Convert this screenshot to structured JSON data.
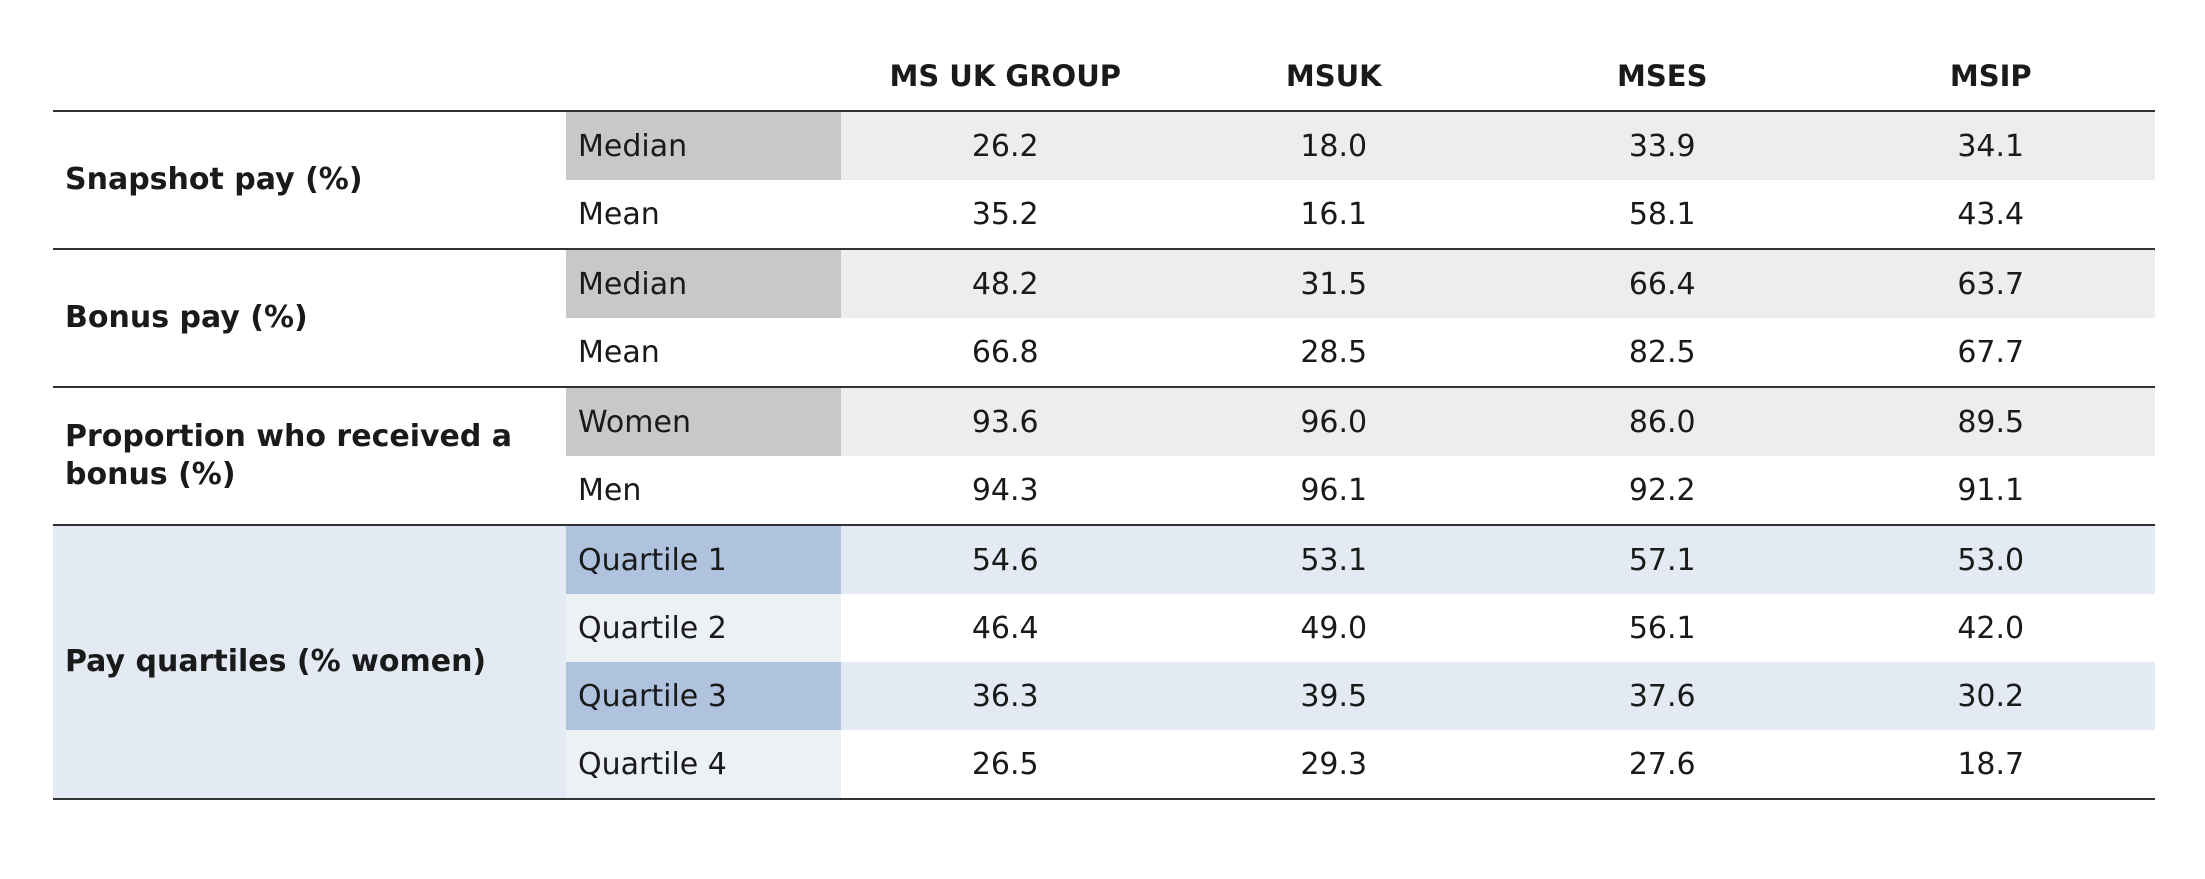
{
  "table": {
    "columns": [
      "MS UK GROUP",
      "MSUK",
      "MSES",
      "MSIP"
    ],
    "groups": [
      {
        "label": "Snapshot pay (%)",
        "rows": [
          {
            "label": "Median",
            "values": [
              "26.2",
              "18.0",
              "33.9",
              "34.1"
            ]
          },
          {
            "label": "Mean",
            "values": [
              "35.2",
              "16.1",
              "58.1",
              "43.4"
            ]
          }
        ]
      },
      {
        "label": "Bonus pay (%)",
        "rows": [
          {
            "label": "Median",
            "values": [
              "48.2",
              "31.5",
              "66.4",
              "63.7"
            ]
          },
          {
            "label": "Mean",
            "values": [
              "66.8",
              "28.5",
              "82.5",
              "67.7"
            ]
          }
        ]
      },
      {
        "label": "Proportion who received a bonus (%)",
        "rows": [
          {
            "label": "Women",
            "values": [
              "93.6",
              "96.0",
              "86.0",
              "89.5"
            ]
          },
          {
            "label": "Men",
            "values": [
              "94.3",
              "96.1",
              "92.2",
              "91.1"
            ]
          }
        ]
      },
      {
        "label": "Pay quartiles (% women)",
        "rows": [
          {
            "label": "Quartile 1",
            "values": [
              "54.6",
              "53.1",
              "57.1",
              "53.0"
            ]
          },
          {
            "label": "Quartile 2",
            "values": [
              "46.4",
              "49.0",
              "56.1",
              "42.0"
            ]
          },
          {
            "label": "Quartile 3",
            "values": [
              "36.3",
              "39.5",
              "37.6",
              "30.2"
            ]
          },
          {
            "label": "Quartile 4",
            "values": [
              "26.5",
              "29.3",
              "27.6",
              "18.7"
            ]
          }
        ]
      }
    ]
  }
}
